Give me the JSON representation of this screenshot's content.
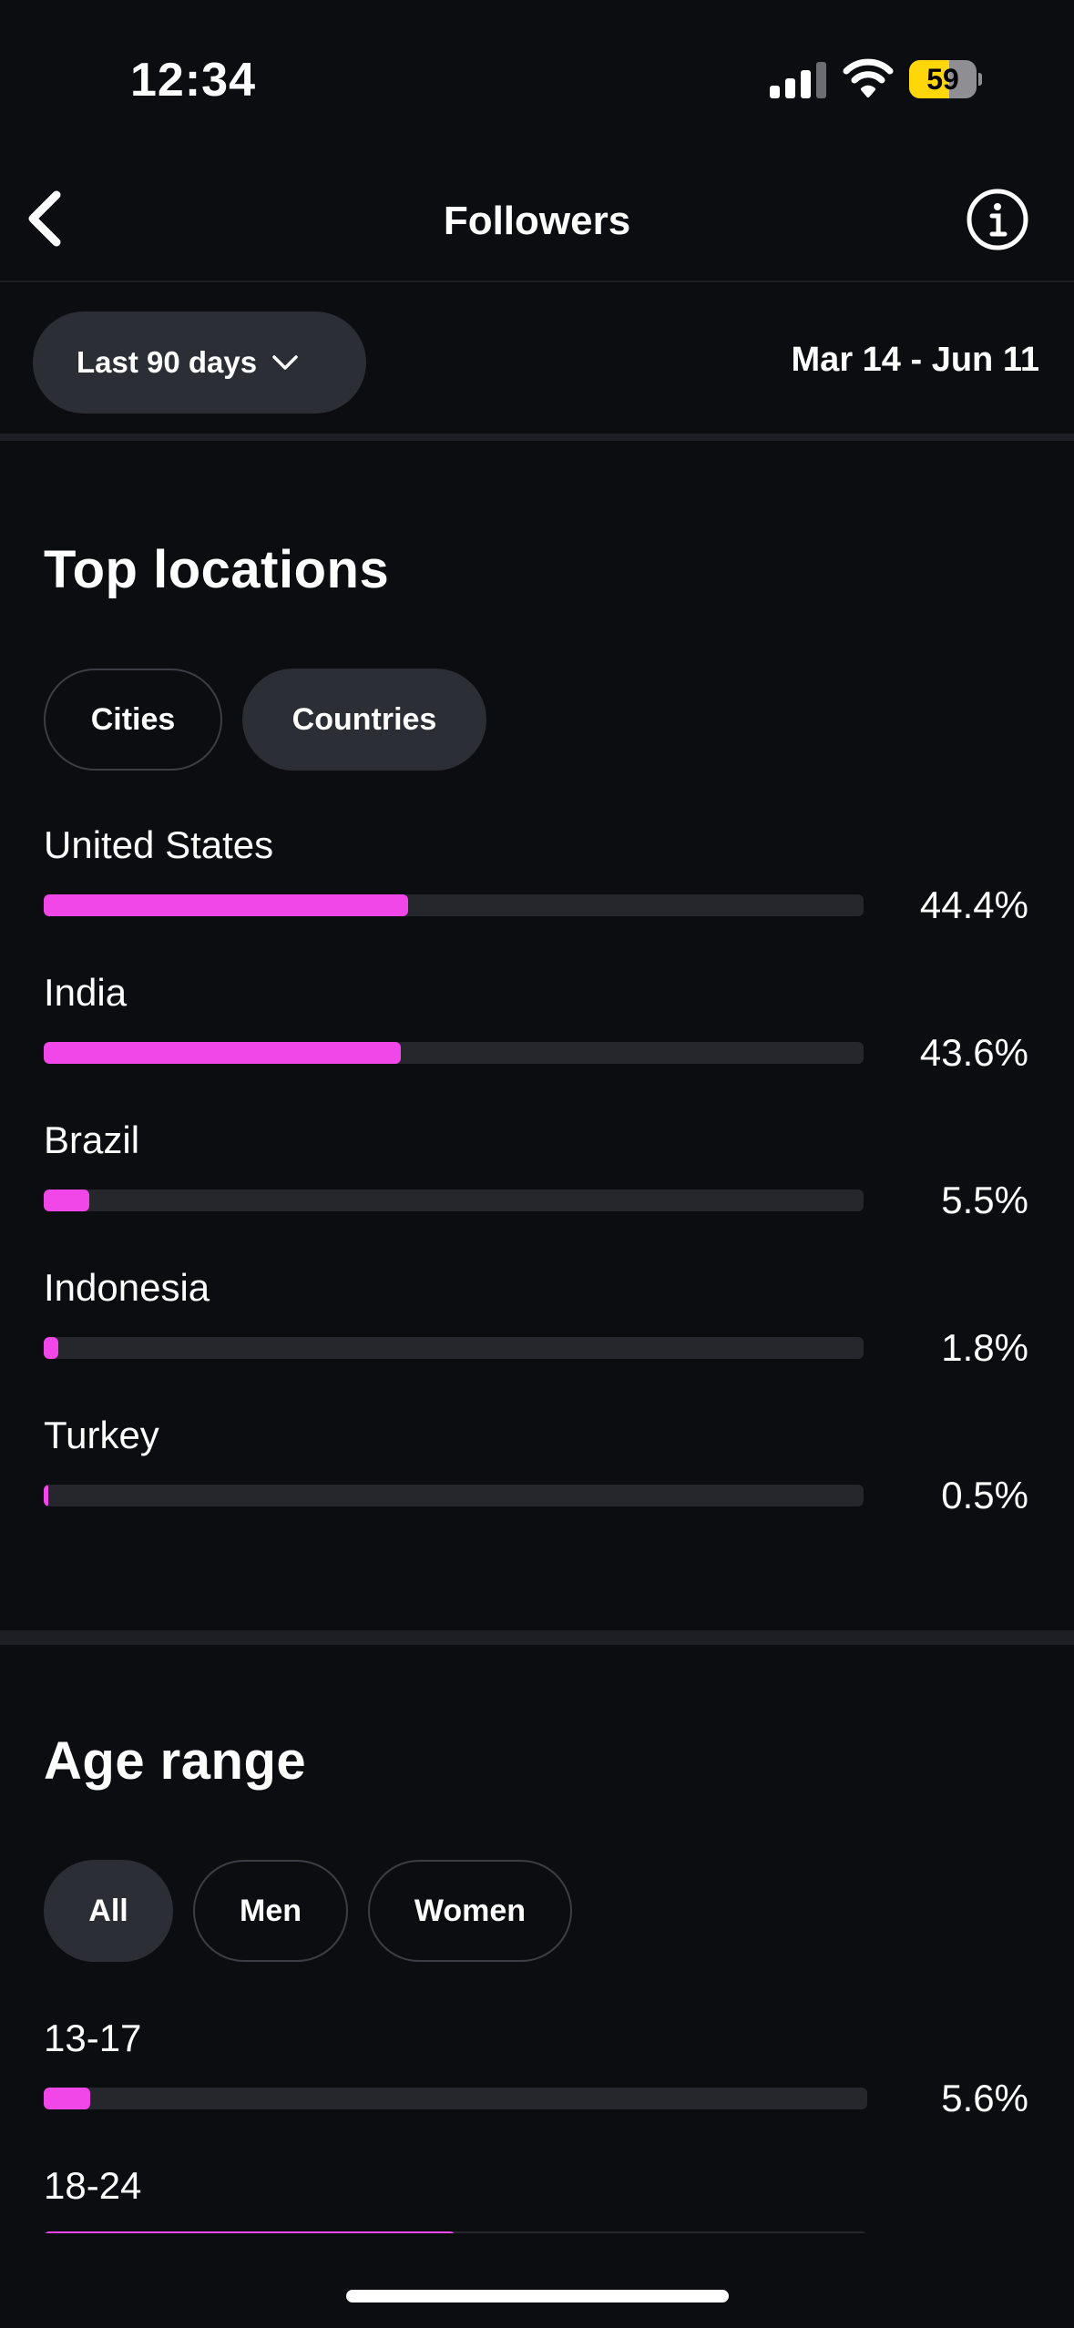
{
  "status": {
    "time": "12:34",
    "battery": "59",
    "battery_level": 0.59
  },
  "header": {
    "title": "Followers"
  },
  "range": {
    "label": "Last 90 days",
    "dates": "Mar 14 - Jun 11"
  },
  "locations": {
    "title": "Top locations",
    "tabs": [
      {
        "label": "Cities",
        "active": false
      },
      {
        "label": "Countries",
        "active": true
      }
    ],
    "rows": [
      {
        "label": "United States",
        "value": "44.4%",
        "fraction": 0.444
      },
      {
        "label": "India",
        "value": "43.6%",
        "fraction": 0.436
      },
      {
        "label": "Brazil",
        "value": "5.5%",
        "fraction": 0.055
      },
      {
        "label": "Indonesia",
        "value": "1.8%",
        "fraction": 0.018
      },
      {
        "label": "Turkey",
        "value": "0.5%",
        "fraction": 0.005
      }
    ]
  },
  "age": {
    "title": "Age range",
    "tabs": [
      {
        "label": "All",
        "active": true
      },
      {
        "label": "Men",
        "active": false
      },
      {
        "label": "Women",
        "active": false
      }
    ],
    "rows": [
      {
        "label": "13-17",
        "value": "5.6%",
        "fraction": 0.056
      },
      {
        "label": "18-24",
        "value": "",
        "fraction": 0.5
      }
    ]
  },
  "colors": {
    "accent": "#f146e8",
    "background": "#0c0d10",
    "track": "#25272c",
    "pill": "#2b2e34"
  }
}
